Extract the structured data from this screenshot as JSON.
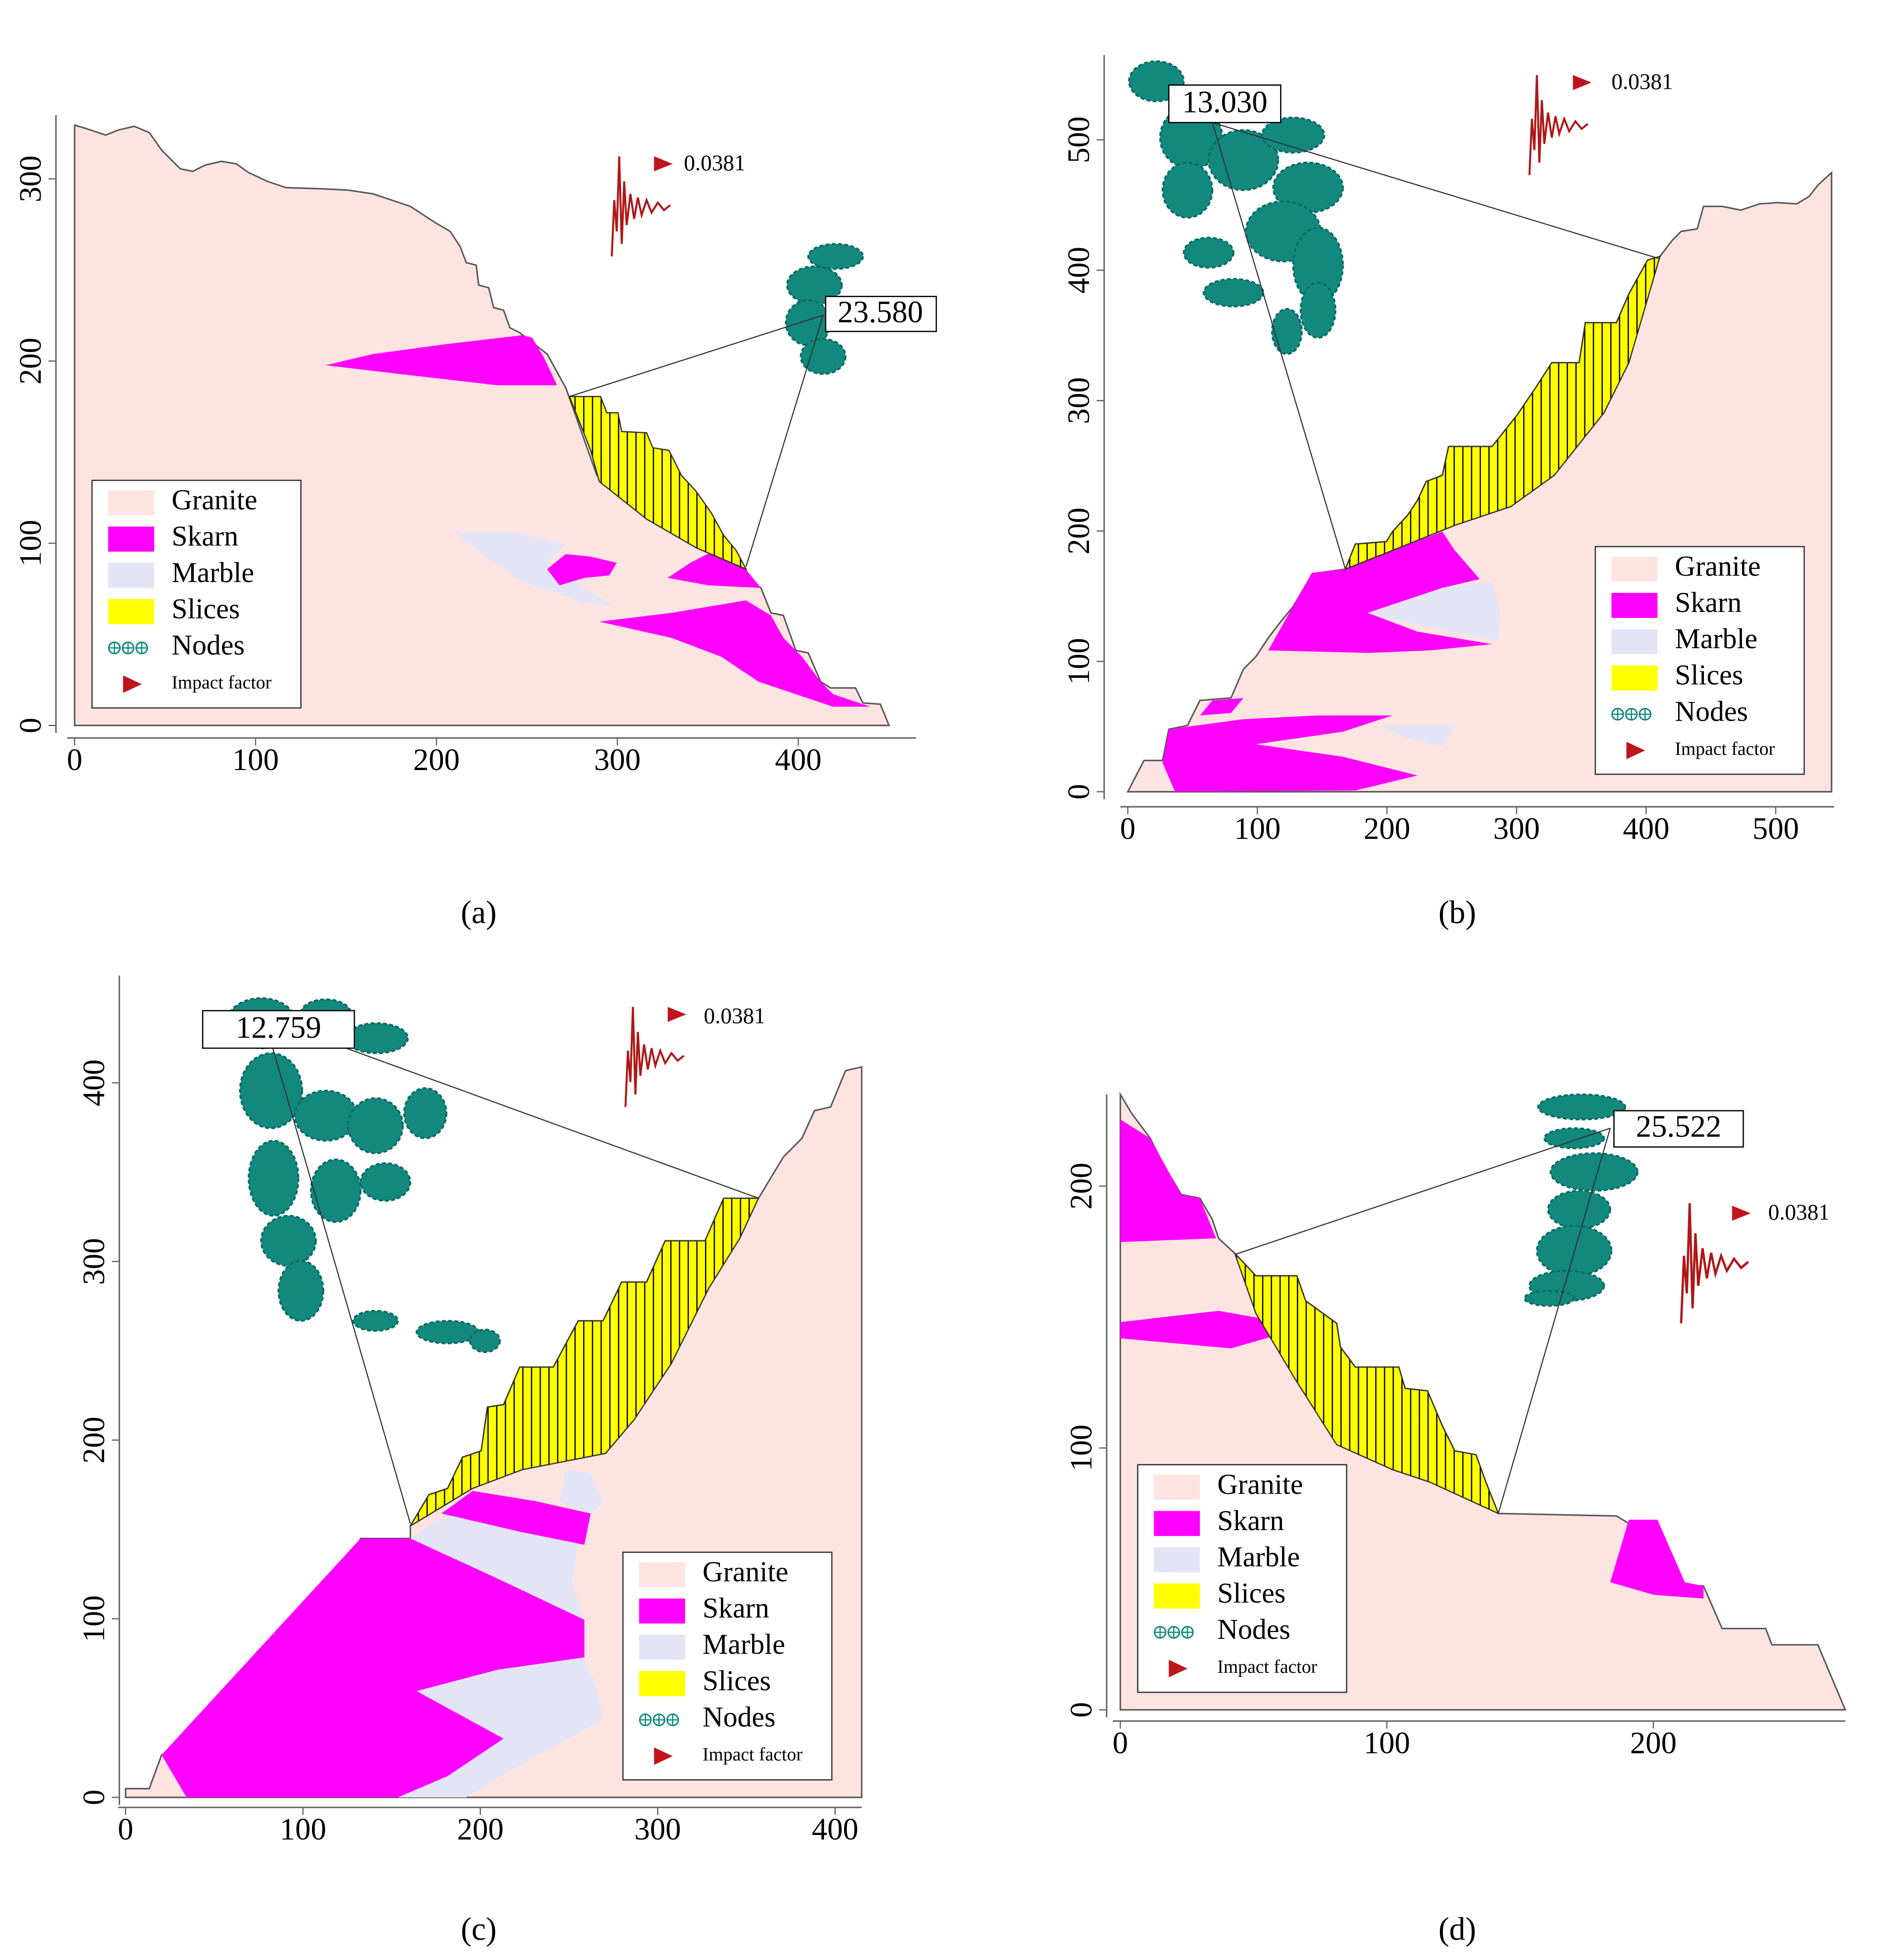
{
  "chart_data": [
    {
      "type": "slope",
      "panel_label": "(a)",
      "xlim": [
        0,
        465
      ],
      "ylim": [
        0,
        335
      ],
      "xticks": [
        0,
        100,
        200,
        300,
        400
      ],
      "yticks": [
        0,
        100,
        200,
        300
      ],
      "safety_factor": {
        "value": 23.58,
        "label": "23.580"
      },
      "impact_factor": 0.0381,
      "legend_position": "lower left",
      "legend": [
        {
          "name": "Granite",
          "color": "#fde4e0"
        },
        {
          "name": "Skarn",
          "color": "#ff00ff"
        },
        {
          "name": "Marble",
          "color": "#e3e5f7"
        },
        {
          "name": "Slices",
          "color": "#ffff00"
        },
        {
          "name": "Nodes",
          "color": "#13897e"
        },
        {
          "name": "Impact factor",
          "color": "#c0141c"
        }
      ]
    },
    {
      "type": "slope",
      "panel_label": "(b)",
      "xlim": [
        0,
        545
      ],
      "ylim": [
        0,
        565
      ],
      "xticks": [
        0,
        100,
        200,
        300,
        400,
        500
      ],
      "yticks": [
        0,
        100,
        200,
        300,
        400,
        500
      ],
      "safety_factor": {
        "value": 13.03,
        "label": "13.030"
      },
      "impact_factor": 0.0381,
      "legend_position": "lower right",
      "legend": [
        {
          "name": "Granite",
          "color": "#fde4e0"
        },
        {
          "name": "Skarn",
          "color": "#ff00ff"
        },
        {
          "name": "Marble",
          "color": "#e3e5f7"
        },
        {
          "name": "Slices",
          "color": "#ffff00"
        },
        {
          "name": "Nodes",
          "color": "#13897e"
        },
        {
          "name": "Impact factor",
          "color": "#c0141c"
        }
      ]
    },
    {
      "type": "slope",
      "panel_label": "(c)",
      "xlim": [
        0,
        415
      ],
      "ylim": [
        0,
        460
      ],
      "xticks": [
        0,
        100,
        200,
        300,
        400
      ],
      "yticks": [
        0,
        100,
        200,
        300,
        400
      ],
      "safety_factor": {
        "value": 12.759,
        "label": "12.759"
      },
      "impact_factor": 0.0381,
      "legend_position": "lower right",
      "legend": [
        {
          "name": "Granite",
          "color": "#fde4e0"
        },
        {
          "name": "Skarn",
          "color": "#ff00ff"
        },
        {
          "name": "Marble",
          "color": "#e3e5f7"
        },
        {
          "name": "Slices",
          "color": "#ffff00"
        },
        {
          "name": "Nodes",
          "color": "#13897e"
        },
        {
          "name": "Impact factor",
          "color": "#c0141c"
        }
      ]
    },
    {
      "type": "slope",
      "panel_label": "(d)",
      "xlim": [
        0,
        272
      ],
      "ylim": [
        0,
        235
      ],
      "xticks": [
        0,
        100,
        200
      ],
      "yticks": [
        0,
        100,
        200
      ],
      "safety_factor": {
        "value": 25.522,
        "label": "25.522"
      },
      "impact_factor": 0.0381,
      "legend_position": "lower left",
      "legend": [
        {
          "name": "Granite",
          "color": "#fde4e0"
        },
        {
          "name": "Skarn",
          "color": "#ff00ff"
        },
        {
          "name": "Marble",
          "color": "#e3e5f7"
        },
        {
          "name": "Slices",
          "color": "#ffff00"
        },
        {
          "name": "Nodes",
          "color": "#13897e"
        },
        {
          "name": "Impact factor",
          "color": "#c0141c"
        }
      ]
    }
  ]
}
